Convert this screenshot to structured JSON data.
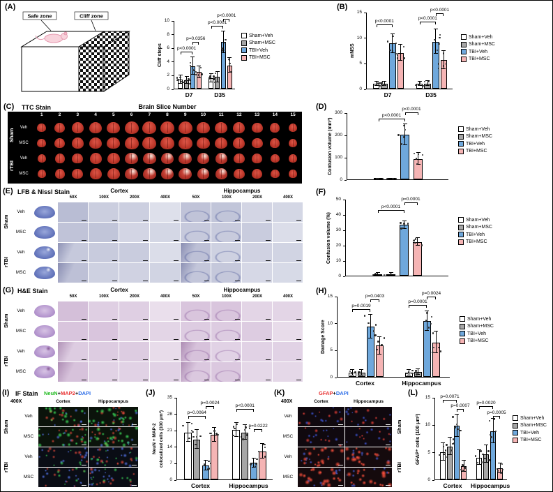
{
  "figure": {
    "groups": [
      "Sham+Veh",
      "Sham+MSC",
      "TBI+Veh",
      "TBI+MSC"
    ],
    "group_colors": [
      "#ffffff",
      "#a6a6a6",
      "#6fa8dc",
      "#f5b4b4"
    ]
  },
  "panel_a": {
    "tag": "(A)",
    "schematic": {
      "safe_zone": "Safe zone",
      "cliff_zone": "Cliff zone"
    }
  },
  "panel_b": {
    "tag": "(B)"
  },
  "panel_c": {
    "tag": "(C)",
    "title": "TTC Stain",
    "header": "Brain Slice Number",
    "slice_numbers": [
      "1",
      "2",
      "3",
      "4",
      "5",
      "6",
      "7",
      "8",
      "9",
      "10",
      "11",
      "12",
      "13",
      "14",
      "15"
    ],
    "groups": [
      {
        "label": "Sham",
        "rows": [
          "Veh",
          "MSC"
        ]
      },
      {
        "label": "rTBI",
        "rows": [
          "Veh",
          "MSC"
        ]
      }
    ]
  },
  "panel_d": {
    "tag": "(D)"
  },
  "panel_e": {
    "tag": "(E)",
    "title": "LFB & Nissl Stain",
    "regions": [
      "Cortex",
      "Hippocampus"
    ],
    "magnifications": [
      "50X",
      "100X",
      "200X",
      "400X"
    ],
    "groups": [
      {
        "label": "Sham",
        "rows": [
          "Veh",
          "MSC"
        ]
      },
      {
        "label": "rTBI",
        "rows": [
          "Veh",
          "MSC"
        ]
      }
    ]
  },
  "panel_f": {
    "tag": "(F)"
  },
  "panel_g": {
    "tag": "(G)",
    "title": "H&E Stain",
    "regions": [
      "Cortex",
      "Hippocampus"
    ],
    "magnifications": [
      "50X",
      "100X",
      "200X",
      "400X"
    ],
    "groups": [
      {
        "label": "Sham",
        "rows": [
          "Veh",
          "MSC"
        ]
      },
      {
        "label": "rTBI",
        "rows": [
          "Veh",
          "MSC"
        ]
      }
    ]
  },
  "panel_h": {
    "tag": "(H)"
  },
  "panel_i": {
    "tag": "(I)",
    "title": "IF Stain",
    "stains": [
      {
        "label": "NeuN",
        "color": "#1fba1f"
      },
      {
        "label": "MAP2",
        "color": "#e83030"
      },
      {
        "label": "DAPI",
        "color": "#2f6fe8"
      }
    ],
    "magnification": "400X",
    "regions": [
      "Cortex",
      "Hippocampus"
    ],
    "groups": [
      {
        "label": "Sham",
        "rows": [
          "Veh",
          "MSC"
        ]
      },
      {
        "label": "rTBI",
        "rows": [
          "Veh",
          "MSC"
        ]
      }
    ]
  },
  "panel_j": {
    "tag": "(J)"
  },
  "panel_k": {
    "tag": "(K)",
    "stains": [
      {
        "label": "GFAP",
        "color": "#e83030"
      },
      {
        "label": "DAPI",
        "color": "#2f6fe8"
      }
    ],
    "magnification": "400X",
    "regions": [
      "Cortex",
      "Hippocampus"
    ],
    "rows": [
      "Veh",
      "MSC",
      "Veh",
      "MSC"
    ],
    "side_groups": [
      "Sham",
      "rTBI"
    ]
  },
  "panel_l": {
    "tag": "(L)"
  },
  "chart_data": [
    {
      "id": "cliff_steps",
      "panel": "A",
      "type": "bar",
      "ylabel": "Cliff steps",
      "ylim": [
        0,
        10
      ],
      "yticks": [
        0,
        2,
        4,
        6,
        8,
        10
      ],
      "categories": [
        "D7",
        "D35"
      ],
      "series": [
        {
          "name": "Sham+Veh",
          "values": [
            1.3,
            1.5
          ],
          "errors": [
            0.6,
            0.6
          ]
        },
        {
          "name": "Sham+MSC",
          "values": [
            1.2,
            1.7
          ],
          "errors": [
            0.5,
            0.8
          ]
        },
        {
          "name": "TBI+Veh",
          "values": [
            3.3,
            6.8
          ],
          "errors": [
            1.3,
            1.6
          ]
        },
        {
          "name": "TBI+MSC",
          "values": [
            2.4,
            3.4
          ],
          "errors": [
            0.9,
            1.1
          ]
        }
      ],
      "significance": [
        {
          "bars": [
            0,
            2
          ],
          "h": 0.5,
          "label": "p<0.0001"
        },
        {
          "bars": [
            2,
            3
          ],
          "h": 0.64,
          "label": "p=0.0356"
        },
        {
          "bars": [
            4,
            6
          ],
          "h": 0.88,
          "label": "p<0.0001"
        },
        {
          "bars": [
            6,
            7
          ],
          "h": 0.98,
          "label": "p<0.0001"
        }
      ]
    },
    {
      "id": "mnss",
      "panel": "B",
      "type": "bar",
      "ylabel": "mNSS",
      "ylim": [
        0,
        15
      ],
      "yticks": [
        0,
        5,
        10,
        15
      ],
      "categories": [
        "D7",
        "D35"
      ],
      "series": [
        {
          "name": "Sham+Veh",
          "values": [
            0.9,
            0.9
          ],
          "errors": [
            0.4,
            0.4
          ]
        },
        {
          "name": "Sham+MSC",
          "values": [
            0.9,
            1.0
          ],
          "errors": [
            0.4,
            0.5
          ]
        },
        {
          "name": "TBI+Veh",
          "values": [
            8.8,
            9.2
          ],
          "errors": [
            1.8,
            2.4
          ]
        },
        {
          "name": "TBI+MSC",
          "values": [
            7.0,
            5.6
          ],
          "errors": [
            1.6,
            1.8
          ]
        }
      ],
      "significance": [
        {
          "bars": [
            0,
            2
          ],
          "h": 0.8,
          "label": "p<0.0001"
        },
        {
          "bars": [
            4,
            6
          ],
          "h": 0.84,
          "label": "p<0.0001"
        },
        {
          "bars": [
            6,
            7
          ],
          "h": 0.95,
          "label": "p<0.0001"
        }
      ]
    },
    {
      "id": "contusion_volume_mm3",
      "panel": "D",
      "type": "bar",
      "ylabel": "Contusion volume (mm³)",
      "ylim": [
        0,
        300
      ],
      "yticks": [
        0,
        100,
        200,
        300
      ],
      "categories": [
        ""
      ],
      "series": [
        {
          "name": "Sham+Veh",
          "values": [
            2
          ],
          "errors": [
            2
          ]
        },
        {
          "name": "Sham+MSC",
          "values": [
            2
          ],
          "errors": [
            2
          ]
        },
        {
          "name": "TBI+Veh",
          "values": [
            200
          ],
          "errors": [
            46
          ]
        },
        {
          "name": "TBI+MSC",
          "values": [
            92
          ],
          "errors": [
            27
          ]
        }
      ],
      "significance": [
        {
          "bars": [
            0,
            2
          ],
          "h": 0.86,
          "label": "p<0.0001"
        },
        {
          "bars": [
            2,
            3
          ],
          "h": 0.96,
          "label": "p<0.0001"
        }
      ]
    },
    {
      "id": "contusion_volume_pct",
      "panel": "F",
      "type": "bar",
      "ylabel": "Contusion volume (%)",
      "ylim": [
        0,
        50
      ],
      "yticks": [
        0,
        10,
        20,
        30,
        40,
        50
      ],
      "categories": [
        ""
      ],
      "series": [
        {
          "name": "Sham+Veh",
          "values": [
            0.8
          ],
          "errors": [
            0.8
          ]
        },
        {
          "name": "Sham+MSC",
          "values": [
            0.8
          ],
          "errors": [
            0.8
          ]
        },
        {
          "name": "TBI+Veh",
          "values": [
            33
          ],
          "errors": [
            2.5
          ]
        },
        {
          "name": "TBI+MSC",
          "values": [
            22
          ],
          "errors": [
            2.5
          ]
        }
      ],
      "significance": [
        {
          "bars": [
            0,
            2
          ],
          "h": 0.82,
          "label": "p<0.0001"
        },
        {
          "bars": [
            2,
            3
          ],
          "h": 0.92,
          "label": "p=0.0001"
        }
      ]
    },
    {
      "id": "damage_score",
      "panel": "H",
      "type": "bar",
      "ylabel": "Damage Score",
      "ylim": [
        0,
        15
      ],
      "yticks": [
        0,
        5,
        10,
        15
      ],
      "categories": [
        "Cortex",
        "Hippocampus"
      ],
      "series": [
        {
          "name": "Sham+Veh",
          "values": [
            0.8,
            0.8
          ],
          "errors": [
            0.5,
            0.5
          ]
        },
        {
          "name": "Sham+MSC",
          "values": [
            0.8,
            0.9
          ],
          "errors": [
            0.5,
            0.5
          ]
        },
        {
          "name": "TBI+Veh",
          "values": [
            9.3,
            10.4
          ],
          "errors": [
            2.2,
            1.8
          ]
        },
        {
          "name": "TBI+MSC",
          "values": [
            5.8,
            6.4
          ],
          "errors": [
            1.6,
            2.0
          ]
        }
      ],
      "significance": [
        {
          "bars": [
            0,
            2
          ],
          "h": 0.8,
          "label": "p=0.0019"
        },
        {
          "bars": [
            2,
            3
          ],
          "h": 0.92,
          "label": "p=0.0403"
        },
        {
          "bars": [
            4,
            6
          ],
          "h": 0.85,
          "label": "p=0.0001"
        },
        {
          "bars": [
            6,
            7
          ],
          "h": 0.96,
          "label": "p=0.0024"
        }
      ]
    },
    {
      "id": "neun_map2",
      "panel": "J",
      "type": "bar",
      "ylabel": "NeuN + MAP-2 colocalized cells (100 μm²)",
      "ylabel_lines": [
        "NeuN + MAP-2",
        "colocalized cells (100 μm²)"
      ],
      "ylim": [
        0,
        35
      ],
      "yticks": [
        0,
        7,
        14,
        21,
        28,
        35
      ],
      "categories": [
        "Cortex",
        "Hippocampus"
      ],
      "series": [
        {
          "name": "Sham+Veh",
          "values": [
            20,
            21
          ],
          "errors": [
            4,
            3
          ]
        },
        {
          "name": "Sham+MSC",
          "values": [
            17,
            20
          ],
          "errors": [
            4,
            3
          ]
        },
        {
          "name": "TBI+Veh",
          "values": [
            6,
            7
          ],
          "errors": [
            2,
            2
          ]
        },
        {
          "name": "TBI+MSC",
          "values": [
            19,
            12
          ],
          "errors": [
            3,
            3
          ]
        }
      ],
      "significance": [
        {
          "bars": [
            0,
            2
          ],
          "h": 0.74,
          "label": "p=0.0064"
        },
        {
          "bars": [
            2,
            3
          ],
          "h": 0.86,
          "label": "p=0.0024"
        },
        {
          "bars": [
            4,
            6
          ],
          "h": 0.82,
          "label": "p<0.0001"
        },
        {
          "bars": [
            6,
            7
          ],
          "h": 0.58,
          "label": "p=0.0222"
        }
      ]
    },
    {
      "id": "gfap_cells",
      "panel": "L",
      "type": "bar",
      "ylabel": "GFAP⁺ cells (100 μm²)",
      "ylim": [
        0,
        15
      ],
      "yticks": [
        0,
        5,
        10,
        15
      ],
      "categories": [
        "Cortex",
        "Hippocampus"
      ],
      "series": [
        {
          "name": "Sham+Veh",
          "values": [
            5.0,
            4.0
          ],
          "errors": [
            1.6,
            1.3
          ]
        },
        {
          "name": "Sham+MSC",
          "values": [
            6.0,
            4.6
          ],
          "errors": [
            1.6,
            1.6
          ]
        },
        {
          "name": "TBI+Veh",
          "values": [
            9.8,
            8.8
          ],
          "errors": [
            2.0,
            2.2
          ]
        },
        {
          "name": "TBI+MSC",
          "values": [
            2.4,
            2.0
          ],
          "errors": [
            1.0,
            0.9
          ]
        }
      ],
      "significance": [
        {
          "bars": [
            0,
            2
          ],
          "h": 0.93,
          "label": "p=0.0071"
        },
        {
          "bars": [
            2,
            3
          ],
          "h": 0.82,
          "label": "p=0.0007"
        },
        {
          "bars": [
            4,
            6
          ],
          "h": 0.86,
          "label": "p=0.0020"
        },
        {
          "bars": [
            6,
            7
          ],
          "h": 0.74,
          "label": "p=0.0005"
        }
      ]
    }
  ]
}
